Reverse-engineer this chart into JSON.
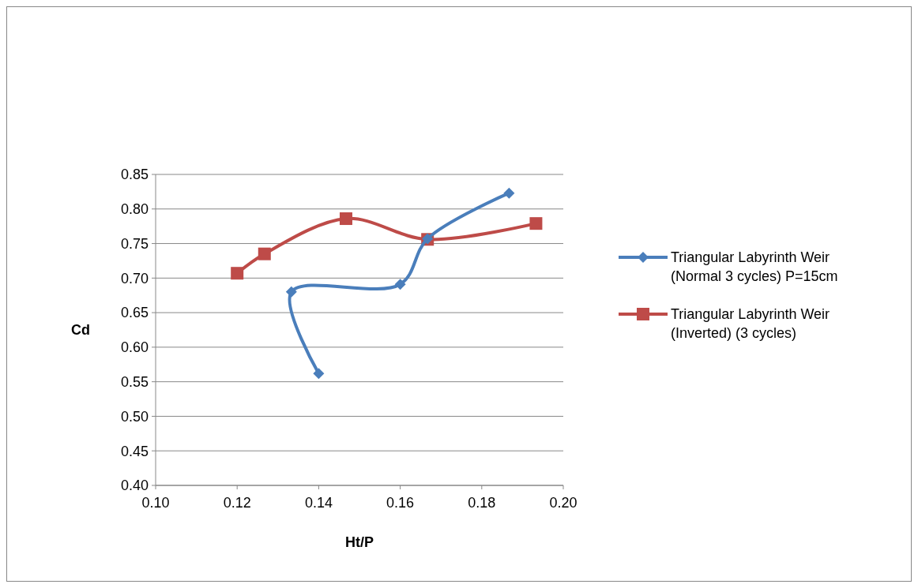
{
  "chart_data": {
    "type": "line",
    "xlabel": "Ht/P",
    "ylabel": "Cd",
    "xlim": [
      0.1,
      0.2
    ],
    "xticks": [
      {
        "value": 0.1,
        "label": "0.10"
      },
      {
        "value": 0.12,
        "label": "0.12"
      },
      {
        "value": 0.14,
        "label": "0.14"
      },
      {
        "value": 0.16,
        "label": "0.16"
      },
      {
        "value": 0.18,
        "label": "0.18"
      },
      {
        "value": 0.2,
        "label": "0.20"
      }
    ],
    "ylim": [
      0.4,
      0.85
    ],
    "yticks": [
      {
        "value": 0.4,
        "label": "0.40"
      },
      {
        "value": 0.45,
        "label": "0.45"
      },
      {
        "value": 0.5,
        "label": "0.50"
      },
      {
        "value": 0.55,
        "label": "0.55"
      },
      {
        "value": 0.6,
        "label": "0.60"
      },
      {
        "value": 0.65,
        "label": "0.65"
      },
      {
        "value": 0.7,
        "label": "0.70"
      },
      {
        "value": 0.75,
        "label": "0.75"
      },
      {
        "value": 0.8,
        "label": "0.80"
      },
      {
        "value": 0.85,
        "label": "0.85"
      }
    ],
    "grid": "y",
    "legend": "right",
    "series": [
      {
        "name": "Triangular Labyrinth Weir (Normal 3 cycles) P=15cm",
        "color": "#4a7ebb",
        "marker": "diamond",
        "x": [
          0.14,
          0.1333,
          0.16,
          0.1667,
          0.1867
        ],
        "values": [
          0.562,
          0.68,
          0.691,
          0.757,
          0.823
        ]
      },
      {
        "name": "Triangular Labyrinth Weir (Inverted) (3 cycles)",
        "color": "#be4b48",
        "marker": "square",
        "x": [
          0.12,
          0.1267,
          0.1467,
          0.1667,
          0.1933
        ],
        "values": [
          0.707,
          0.735,
          0.786,
          0.756,
          0.779
        ]
      }
    ]
  }
}
